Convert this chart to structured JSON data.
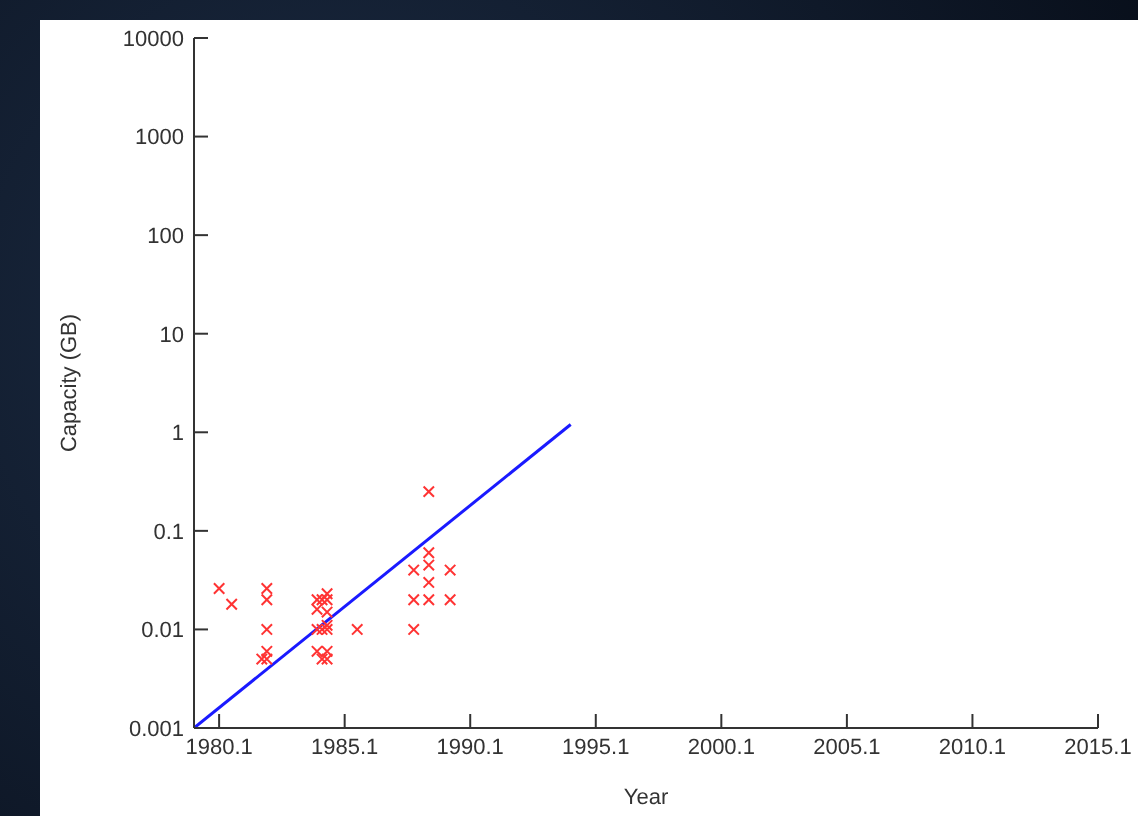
{
  "chart_data": {
    "type": "scatter",
    "xlabel": "Year",
    "ylabel": "Capacity (GB)",
    "log": "y",
    "xlim": [
      1979.1,
      2015.1
    ],
    "xticks": [
      1980.1,
      1985.1,
      1990.1,
      1995.1,
      2000.1,
      2005.1,
      2010.1,
      2015.1
    ],
    "ylim": [
      0.001,
      10000
    ],
    "yticks": [
      0.001,
      0.01,
      0.1,
      1,
      10,
      100,
      1000,
      10000
    ],
    "grid": false,
    "legend": false,
    "series": [
      {
        "color": "#ff3333",
        "marker": "cross",
        "x": [
          1980.1,
          1980.6,
          1981.8,
          1982.0,
          1982.0,
          1982.0,
          1982.0,
          1982.0,
          1984.0,
          1984.0,
          1984.0,
          1984.0,
          1984.2,
          1984.2,
          1984.2,
          1984.4,
          1984.4,
          1984.4,
          1984.4,
          1984.4,
          1984.4,
          1984.4,
          1985.6,
          1987.85,
          1987.85,
          1987.85,
          1988.45,
          1988.45,
          1988.45,
          1988.45,
          1988.45,
          1989.3,
          1989.3
        ],
        "values": [
          0.026,
          0.018,
          0.005,
          0.026,
          0.02,
          0.01,
          0.006,
          0.005,
          0.02,
          0.016,
          0.01,
          0.006,
          0.02,
          0.01,
          0.005,
          0.023,
          0.02,
          0.015,
          0.011,
          0.01,
          0.006,
          0.005,
          0.01,
          0.04,
          0.02,
          0.01,
          0.25,
          0.06,
          0.045,
          0.03,
          0.02,
          0.04,
          0.02
        ]
      },
      {
        "type": "line",
        "color": "#1a1aff",
        "marker": "none",
        "x": [
          1979.1,
          1994.1
        ],
        "values": [
          0.001,
          1.2
        ]
      }
    ]
  }
}
